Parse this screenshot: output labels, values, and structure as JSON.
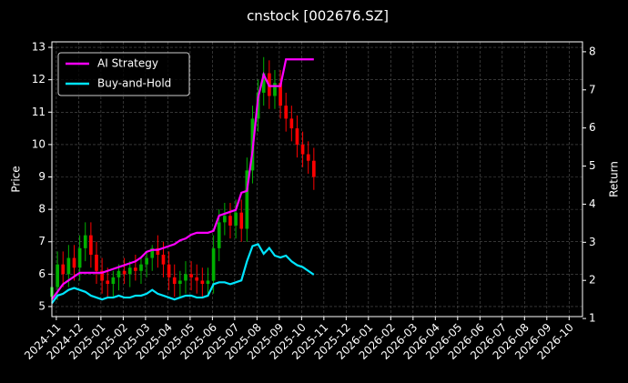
{
  "chart_data": {
    "type": "candlestick",
    "title": "cnstock [002676.SZ]",
    "ylabel": "Price",
    "y2label": "Return",
    "x": [
      -0.2,
      0.05,
      0.3,
      0.55,
      0.8,
      1.05,
      1.3,
      1.55,
      1.8,
      2.05,
      2.3,
      2.55,
      2.8,
      3.05,
      3.3,
      3.55,
      3.8,
      4.05,
      4.3,
      4.55,
      4.8,
      5.05,
      5.3,
      5.55,
      5.8,
      6.05,
      6.3,
      6.55,
      6.8,
      7.05,
      7.3,
      7.55,
      7.8,
      8.05,
      8.3,
      8.55,
      8.8,
      9.05,
      9.3,
      9.55,
      9.8,
      10.05,
      10.3,
      10.55,
      10.8,
      11.05,
      11.3,
      11.55
    ],
    "open": [
      5.3,
      5.6,
      6.3,
      6.0,
      6.5,
      6.2,
      6.8,
      7.2,
      6.6,
      6.1,
      5.8,
      5.7,
      5.9,
      6.1,
      6.0,
      6.2,
      6.1,
      6.3,
      6.5,
      6.8,
      6.6,
      6.3,
      5.9,
      5.7,
      5.8,
      6.0,
      5.9,
      5.8,
      5.7,
      5.8,
      6.8,
      7.6,
      7.8,
      7.5,
      7.9,
      7.4,
      9.2,
      10.8,
      11.6,
      12.2,
      11.5,
      11.9,
      11.2,
      10.8,
      10.5,
      10.0,
      9.7,
      9.5
    ],
    "high": [
      6.0,
      6.7,
      6.7,
      6.9,
      6.9,
      7.2,
      7.6,
      7.6,
      7.0,
      6.5,
      6.2,
      6.1,
      6.3,
      6.5,
      6.4,
      6.6,
      6.5,
      6.7,
      6.9,
      7.2,
      7.0,
      6.7,
      6.3,
      6.1,
      6.4,
      6.4,
      6.3,
      6.2,
      6.2,
      7.2,
      8.0,
      8.2,
      8.2,
      8.3,
      8.3,
      9.6,
      11.2,
      12.0,
      12.7,
      12.6,
      12.3,
      12.3,
      11.6,
      11.2,
      10.9,
      10.4,
      10.1,
      9.9
    ],
    "low": [
      4.9,
      5.2,
      5.6,
      5.6,
      5.8,
      5.8,
      6.4,
      6.2,
      5.7,
      5.4,
      5.3,
      5.3,
      5.5,
      5.7,
      5.6,
      5.8,
      5.7,
      5.9,
      6.1,
      6.2,
      5.9,
      5.5,
      5.3,
      5.3,
      5.4,
      5.5,
      5.4,
      5.3,
      5.3,
      5.4,
      6.4,
      7.2,
      7.1,
      7.1,
      7.0,
      7.0,
      8.8,
      10.4,
      11.2,
      11.1,
      11.1,
      10.8,
      10.4,
      10.1,
      9.6,
      9.3,
      9.1,
      8.6
    ],
    "close": [
      5.6,
      6.3,
      6.0,
      6.5,
      6.2,
      6.8,
      7.2,
      6.6,
      6.1,
      5.8,
      5.7,
      5.9,
      6.1,
      6.0,
      6.2,
      6.1,
      6.3,
      6.5,
      6.8,
      6.6,
      6.3,
      5.9,
      5.7,
      5.8,
      6.0,
      5.9,
      5.8,
      5.7,
      5.8,
      6.8,
      7.6,
      7.8,
      7.5,
      7.9,
      7.4,
      9.2,
      10.8,
      11.6,
      12.2,
      11.5,
      11.9,
      11.2,
      10.8,
      10.5,
      10.0,
      9.7,
      9.5,
      9.0
    ],
    "up_color": "#00b000",
    "down_color": "#ff0000",
    "series": [
      {
        "name": "AI Strategy",
        "color": "#ff00ff",
        "axis": "y2",
        "values": [
          1.5,
          1.7,
          1.9,
          2.0,
          2.1,
          2.2,
          2.2,
          2.2,
          2.2,
          2.2,
          2.25,
          2.3,
          2.35,
          2.4,
          2.45,
          2.5,
          2.6,
          2.75,
          2.8,
          2.8,
          2.85,
          2.9,
          2.95,
          3.05,
          3.1,
          3.2,
          3.25,
          3.25,
          3.25,
          3.3,
          3.7,
          3.75,
          3.8,
          3.85,
          4.3,
          4.35,
          5.4,
          6.8,
          7.4,
          7.1,
          7.1,
          7.1,
          7.8,
          7.8,
          7.8,
          7.8,
          7.8,
          7.8
        ]
      },
      {
        "name": "Buy-and-Hold",
        "color": "#00e5ff",
        "axis": "y2",
        "values": [
          1.4,
          1.6,
          1.65,
          1.75,
          1.8,
          1.75,
          1.7,
          1.6,
          1.55,
          1.5,
          1.55,
          1.55,
          1.6,
          1.55,
          1.55,
          1.6,
          1.6,
          1.65,
          1.75,
          1.65,
          1.6,
          1.55,
          1.5,
          1.55,
          1.6,
          1.6,
          1.55,
          1.55,
          1.6,
          1.9,
          1.95,
          1.95,
          1.9,
          1.95,
          2.0,
          2.5,
          2.9,
          2.95,
          2.7,
          2.85,
          2.65,
          2.6,
          2.65,
          2.5,
          2.4,
          2.35,
          2.25,
          2.15
        ]
      }
    ],
    "xlim": [
      -0.2,
      23.6
    ],
    "xticks": [
      {
        "value": 0,
        "label": "2024-11"
      },
      {
        "value": 1,
        "label": "2024-12"
      },
      {
        "value": 2,
        "label": "2025-01"
      },
      {
        "value": 3,
        "label": "2025-02"
      },
      {
        "value": 4,
        "label": "2025-03"
      },
      {
        "value": 5,
        "label": "2025-04"
      },
      {
        "value": 6,
        "label": "2025-05"
      },
      {
        "value": 7,
        "label": "2025-06"
      },
      {
        "value": 8,
        "label": "2025-07"
      },
      {
        "value": 9,
        "label": "2025-08"
      },
      {
        "value": 10,
        "label": "2025-09"
      },
      {
        "value": 11,
        "label": "2025-10"
      },
      {
        "value": 12,
        "label": "2025-11"
      },
      {
        "value": 13,
        "label": "2025-12"
      },
      {
        "value": 14,
        "label": "2026-01"
      },
      {
        "value": 15,
        "label": "2026-02"
      },
      {
        "value": 16,
        "label": "2026-03"
      },
      {
        "value": 17,
        "label": "2026-04"
      },
      {
        "value": 18,
        "label": "2026-05"
      },
      {
        "value": 19,
        "label": "2026-06"
      },
      {
        "value": 20,
        "label": "2026-07"
      },
      {
        "value": 21,
        "label": "2026-08"
      },
      {
        "value": 22,
        "label": "2026-09"
      },
      {
        "value": 23,
        "label": "2026-10"
      }
    ],
    "ylim": [
      4.69,
      13.17
    ],
    "yticks": [
      5,
      6,
      7,
      8,
      9,
      10,
      11,
      12,
      13
    ],
    "y2lim": [
      1.05,
      8.26
    ],
    "y2ticks": [
      1,
      2,
      3,
      4,
      5,
      6,
      7,
      8
    ],
    "grid": true,
    "legend": "upper left"
  }
}
